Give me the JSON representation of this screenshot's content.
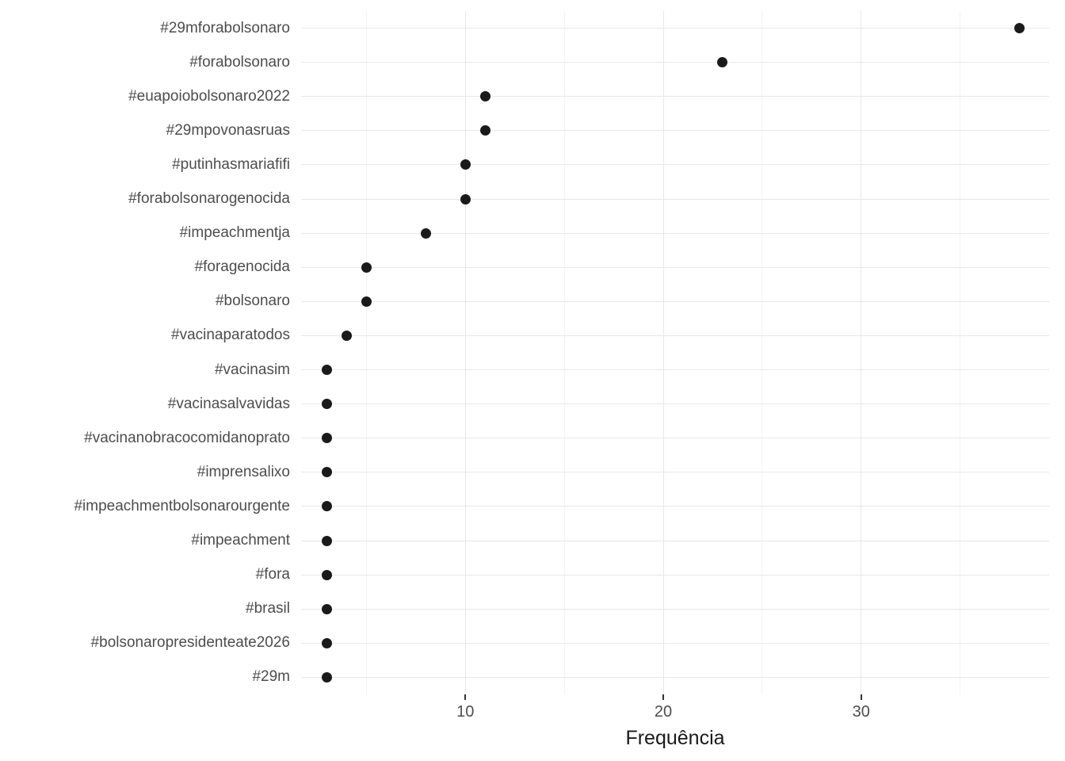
{
  "chart_data": {
    "type": "scatter",
    "subtype": "cleveland-dot-plot",
    "title": "",
    "xlabel": "Frequência",
    "ylabel": "",
    "categories": [
      "#29mforabolsonaro",
      "#forabolsonaro",
      "#euapoiobolsonaro2022",
      "#29mpovonasruas",
      "#putinhasmariafifi",
      "#forabolsonarogenocida",
      "#impeachmentja",
      "#foragenocida",
      "#bolsonaro",
      "#vacinaparatodos",
      "#vacinasim",
      "#vacinasalvavidas",
      "#vacinanobracocomidanoprato",
      "#imprensalixo",
      "#impeachmentbolsonarourgente",
      "#impeachment",
      "#fora",
      "#brasil",
      "#bolsonaropresidenteate2026",
      "#29m"
    ],
    "values": [
      38,
      23,
      11,
      11,
      10,
      10,
      8,
      5,
      5,
      4,
      3,
      3,
      3,
      3,
      3,
      3,
      3,
      3,
      3,
      3
    ],
    "xlim": [
      1.7,
      39.5
    ],
    "x_major_ticks": [
      10,
      20,
      30
    ],
    "x_minor_ticks": [
      5,
      15,
      25,
      35
    ],
    "legend": "none",
    "grid": "vertical major+minor, horizontal major per category",
    "colors": {
      "point": "#1a1a1a",
      "grid_major": "#e8e8e8",
      "grid_minor": "#f4f4f4",
      "axis_tick": "#333333",
      "tick_label": "#4d4d4d",
      "category_label": "#4d4d4d",
      "axis_title": "#1a1a1a",
      "background": "#ffffff"
    }
  }
}
